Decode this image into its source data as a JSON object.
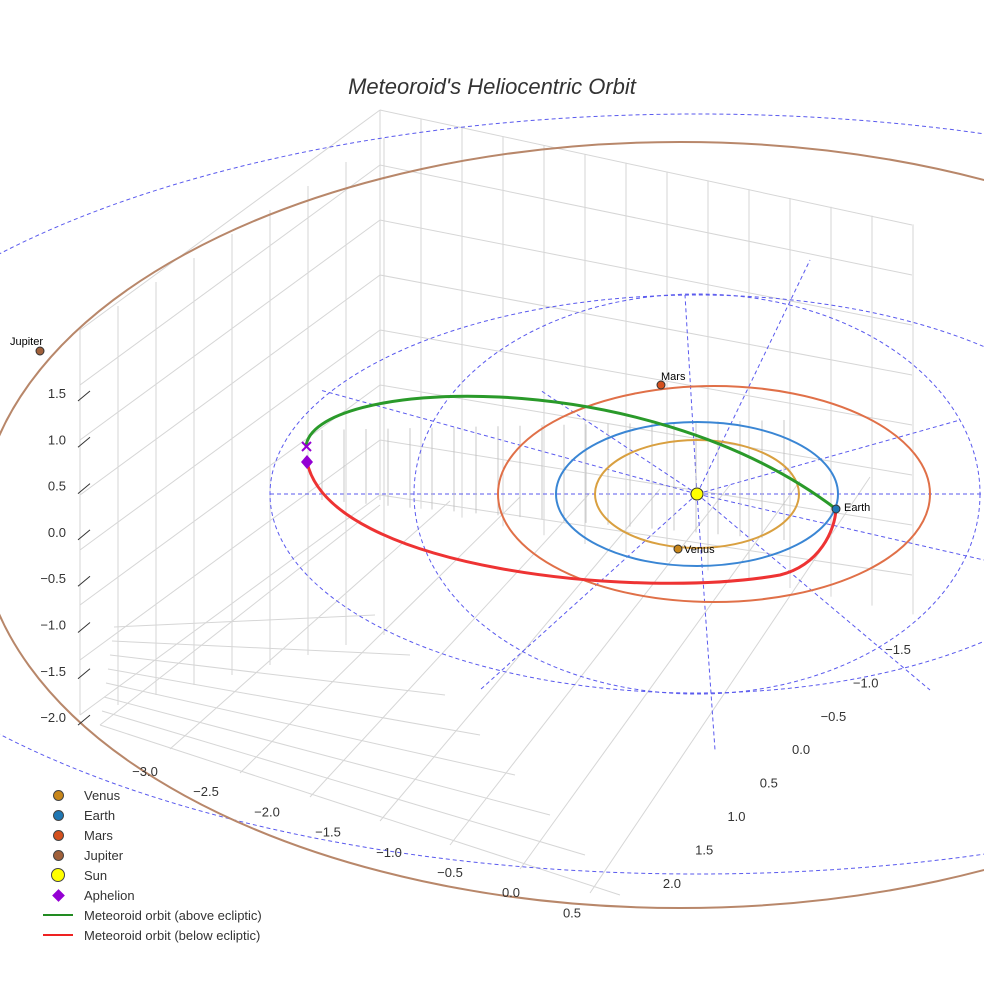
{
  "chart_data": {
    "type": "scatter3d",
    "title": "Meteoroid's Heliocentric Orbit",
    "axes": {
      "x": {
        "ticks": [
          "−3.0",
          "−2.5",
          "−2.0",
          "−1.5",
          "−1.0",
          "−0.5",
          "0.0",
          "0.5"
        ]
      },
      "y": {
        "ticks": [
          "−1.5",
          "−1.0",
          "−0.5",
          "0.0",
          "0.5",
          "1.0",
          "1.5",
          "2.0"
        ]
      },
      "z": {
        "ticks": [
          "1.5",
          "1.0",
          "0.5",
          "0.0",
          "−0.5",
          "−1.0",
          "−1.5",
          "−2.0"
        ]
      }
    },
    "planets": [
      {
        "name": "Venus",
        "orbit_au": 0.72,
        "color": "#c8861a"
      },
      {
        "name": "Earth",
        "orbit_au": 1.0,
        "color": "#1f77b4"
      },
      {
        "name": "Mars",
        "orbit_au": 1.52,
        "color": "#d4501e"
      },
      {
        "name": "Jupiter",
        "orbit_au": 5.2,
        "color": "#a0603a"
      }
    ],
    "legend": [
      {
        "label": "Venus",
        "kind": "dot",
        "color": "#c8861a"
      },
      {
        "label": "Earth",
        "kind": "dot",
        "color": "#1f77b4"
      },
      {
        "label": "Mars",
        "kind": "dot",
        "color": "#d4501e"
      },
      {
        "label": "Jupiter",
        "kind": "dot",
        "color": "#a0603a"
      },
      {
        "label": "Sun",
        "kind": "sun",
        "color": "#ffff00"
      },
      {
        "label": "Aphelion",
        "kind": "diamond",
        "color": "#9400d3"
      },
      {
        "label": "Meteoroid orbit (above ecliptic)",
        "kind": "line",
        "color": "#228b22"
      },
      {
        "label": "Meteoroid orbit (below ecliptic)",
        "kind": "line",
        "color": "#ee2222"
      }
    ],
    "legend_position": "bottom-left"
  }
}
